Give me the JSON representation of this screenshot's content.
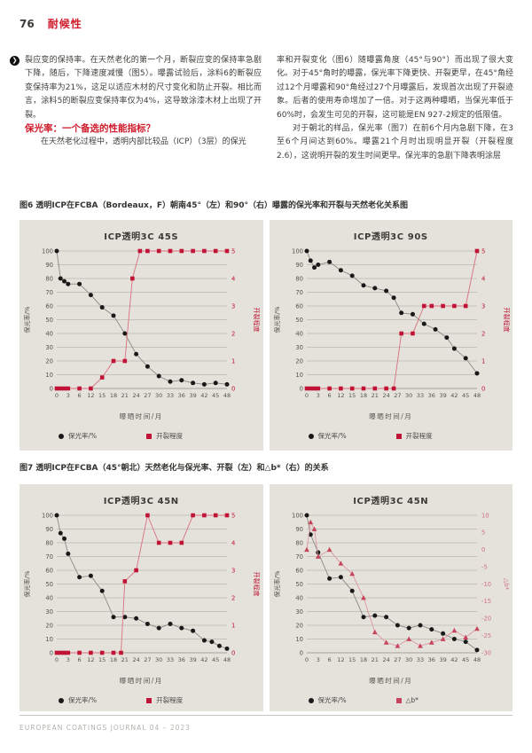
{
  "page": {
    "number": "76",
    "section": "耐候性"
  },
  "body": {
    "left_paragraph1": "裂应变的保持率。在天然老化的第一个月，断裂应变的保持率急剧下降，随后，下降速度减慢（图5）。曝露试验后，涂料6的断裂应变保持率为21%，这足以适应木材的尺寸变化和防止开裂。相比而言，涂料5的断裂应变保持率仅为4%，这导致涂漆木材上出现了开裂。",
    "heading": "保光率：一个备选的性能指标？",
    "left_paragraph2": "在天然老化过程中，透明内部比较品（ICP）（3层）的保光",
    "right_paragraph1": "率和开裂变化（图6）随曝露角度（45°与90°）而出现了很大变化。对于45°角时的曝露，保光率下降更快、开裂更早，在45°角经过12个月曝露和90°角经过27个月曝露后，发现首次出现了开裂迹象。后者的使用寿命增加了一倍。对于这两种曝晒，当保光率低于60%时，会发生可见的开裂，这可能是EN 927-2规定的低限值。",
    "right_paragraph2": "对于朝北的样品，保光率（图7）在前6个月内急剧下降，在3至6个月间达到60%。曝露21个月时出现明显开裂（开裂程度2.6），这说明开裂的发生时间更早。保光率的急剧下降表明涂层"
  },
  "figure6": {
    "caption": "图6 透明ICP在FCBA（Bordeaux，F）朝南45°（左）和90°（右）曝露的保光率和开裂与天然老化关系图"
  },
  "figure7": {
    "caption": "图7 透明ICP在FCBA（45°朝北）天然老化与保光率、开裂（左）和△b*（右）的关系"
  },
  "footer": {
    "text": "EUROPEAN COATINGS JOURNAL 04 – 2023"
  },
  "colors": {
    "accent": "#cf1b2b",
    "panel_bg": "#e4e2db",
    "grid": "#a5a29a",
    "black_marker": "#191919",
    "gray_line": "#8b8a84",
    "red_marker": "#c11335",
    "red_line": "#d9707e",
    "pink_marker": "#c6455c",
    "pink_line": "#dc96a1"
  },
  "chart_data": [
    {
      "type": "line",
      "title": "ICP透明3C 45S",
      "xlabel": "曝晒时间/月",
      "x_ticks": [
        0,
        3,
        6,
        12,
        15,
        18,
        21,
        24,
        27,
        30,
        33,
        36,
        39,
        42,
        45,
        48
      ],
      "y_left": {
        "label": "保光率/%",
        "min": 0,
        "max": 100,
        "step": 10,
        "color": "#55544e"
      },
      "y_right": {
        "label": "开裂程度",
        "min": 0,
        "max": 5,
        "step": 1,
        "color": "#c11335"
      },
      "series": [
        {
          "name": "保光率/%",
          "axis": "left",
          "marker": "circle",
          "marker_color": "#191919",
          "line_color": "#8b8a84",
          "points": [
            [
              0,
              100
            ],
            [
              1,
              80
            ],
            [
              2,
              78
            ],
            [
              3,
              76
            ],
            [
              6,
              76
            ],
            [
              12,
              68
            ],
            [
              15,
              59
            ],
            [
              18,
              53
            ],
            [
              21,
              40
            ],
            [
              24,
              25
            ],
            [
              27,
              16
            ],
            [
              30,
              9
            ],
            [
              33,
              5
            ],
            [
              36,
              6
            ],
            [
              39,
              4
            ],
            [
              42,
              3
            ],
            [
              45,
              4
            ],
            [
              48,
              3
            ]
          ]
        },
        {
          "name": "开裂程度",
          "axis": "right",
          "marker": "square",
          "marker_color": "#c11335",
          "line_color": "#d9707e",
          "points": [
            [
              0,
              0
            ],
            [
              1,
              0
            ],
            [
              2,
              0
            ],
            [
              3,
              0
            ],
            [
              6,
              0
            ],
            [
              12,
              0
            ],
            [
              15,
              0.4
            ],
            [
              18,
              1
            ],
            [
              21,
              1
            ],
            [
              23,
              4
            ],
            [
              25,
              5
            ],
            [
              27,
              5
            ],
            [
              30,
              5
            ],
            [
              33,
              5
            ],
            [
              36,
              5
            ],
            [
              39,
              5
            ],
            [
              42,
              5
            ],
            [
              45,
              5
            ],
            [
              48,
              5
            ]
          ]
        }
      ]
    },
    {
      "type": "line",
      "title": "ICP透明3C 90S",
      "xlabel": "曝晒时间/月",
      "x_ticks": [
        0,
        3,
        6,
        12,
        15,
        18,
        21,
        24,
        27,
        30,
        33,
        36,
        39,
        42,
        45,
        48
      ],
      "y_left": {
        "label": "保光率/%",
        "min": 0,
        "max": 100,
        "step": 10,
        "color": "#55544e"
      },
      "y_right": {
        "label": "开裂程度",
        "min": 0,
        "max": 5,
        "step": 1,
        "color": "#c11335"
      },
      "series": [
        {
          "name": "保光率/%",
          "axis": "left",
          "marker": "circle",
          "marker_color": "#191919",
          "line_color": "#8b8a84",
          "points": [
            [
              0,
              100
            ],
            [
              1,
              93
            ],
            [
              2,
              88
            ],
            [
              3,
              90
            ],
            [
              6,
              92
            ],
            [
              12,
              86
            ],
            [
              15,
              82
            ],
            [
              18,
              75
            ],
            [
              21,
              73
            ],
            [
              24,
              71
            ],
            [
              26,
              66
            ],
            [
              28,
              55
            ],
            [
              31,
              54
            ],
            [
              34,
              47
            ],
            [
              37,
              43
            ],
            [
              40,
              37
            ],
            [
              42,
              29
            ],
            [
              45,
              22
            ],
            [
              48,
              11
            ]
          ]
        },
        {
          "name": "开裂程度",
          "axis": "right",
          "marker": "square",
          "marker_color": "#c11335",
          "line_color": "#d9707e",
          "points": [
            [
              0,
              0
            ],
            [
              1,
              0
            ],
            [
              2,
              0
            ],
            [
              3,
              0
            ],
            [
              6,
              0
            ],
            [
              12,
              0
            ],
            [
              15,
              0
            ],
            [
              18,
              0
            ],
            [
              21,
              0
            ],
            [
              24,
              0
            ],
            [
              26,
              0
            ],
            [
              28,
              2
            ],
            [
              31,
              2
            ],
            [
              34,
              3
            ],
            [
              36,
              3
            ],
            [
              39,
              3
            ],
            [
              42,
              3
            ],
            [
              45,
              3
            ],
            [
              48,
              5
            ]
          ]
        }
      ]
    },
    {
      "type": "line",
      "title": "ICP透明3C 45N",
      "xlabel": "曝晒时间/月",
      "x_ticks": [
        0,
        3,
        6,
        12,
        15,
        18,
        21,
        24,
        27,
        30,
        33,
        36,
        39,
        42,
        45,
        48
      ],
      "y_left": {
        "label": "保光率/%",
        "min": 0,
        "max": 100,
        "step": 10,
        "color": "#55544e"
      },
      "y_right": {
        "label": "开裂程度",
        "min": 0,
        "max": 5,
        "step": 1,
        "color": "#c11335"
      },
      "series": [
        {
          "name": "保光率/%",
          "axis": "left",
          "marker": "circle",
          "marker_color": "#191919",
          "line_color": "#8b8a84",
          "points": [
            [
              0,
              100
            ],
            [
              1,
              87
            ],
            [
              2,
              83
            ],
            [
              3,
              72
            ],
            [
              6,
              55
            ],
            [
              12,
              56
            ],
            [
              15,
              45
            ],
            [
              18,
              26
            ],
            [
              21,
              26
            ],
            [
              24,
              25
            ],
            [
              27,
              21
            ],
            [
              30,
              18
            ],
            [
              33,
              21
            ],
            [
              36,
              18
            ],
            [
              39,
              16
            ],
            [
              42,
              9
            ],
            [
              44,
              8
            ],
            [
              46,
              5
            ],
            [
              48,
              3
            ]
          ]
        },
        {
          "name": "开裂程度",
          "axis": "right",
          "marker": "square",
          "marker_color": "#c11335",
          "line_color": "#d9707e",
          "points": [
            [
              0,
              0
            ],
            [
              1,
              0
            ],
            [
              2,
              0
            ],
            [
              3,
              0
            ],
            [
              6,
              0
            ],
            [
              12,
              0
            ],
            [
              15,
              0
            ],
            [
              18,
              0
            ],
            [
              20,
              0
            ],
            [
              21,
              2.6
            ],
            [
              24,
              3
            ],
            [
              27,
              5
            ],
            [
              30,
              4
            ],
            [
              33,
              4
            ],
            [
              36,
              4
            ],
            [
              39,
              5
            ],
            [
              42,
              5
            ],
            [
              45,
              5
            ],
            [
              48,
              5
            ]
          ]
        }
      ]
    },
    {
      "type": "line",
      "title": "ICP透明3C 45N",
      "xlabel": "曝晒时间/月",
      "x_ticks": [
        0,
        3,
        6,
        12,
        15,
        18,
        21,
        24,
        27,
        30,
        33,
        36,
        39,
        42,
        45,
        48
      ],
      "y_left": {
        "label": "保光率/%",
        "min": 0,
        "max": 100,
        "step": 10,
        "color": "#55544e"
      },
      "y_right": {
        "label": "△b*",
        "min": -30,
        "max": 10,
        "step": 5,
        "color": "#cd7380"
      },
      "series": [
        {
          "name": "保光率/%",
          "axis": "left",
          "marker": "circle",
          "marker_color": "#191919",
          "line_color": "#8b8a84",
          "points": [
            [
              0,
              100
            ],
            [
              1,
              86
            ],
            [
              3,
              73
            ],
            [
              6,
              54
            ],
            [
              12,
              55
            ],
            [
              15,
              45
            ],
            [
              18,
              26
            ],
            [
              21,
              27
            ],
            [
              24,
              26
            ],
            [
              27,
              20
            ],
            [
              30,
              18
            ],
            [
              33,
              20
            ],
            [
              36,
              17
            ],
            [
              39,
              14
            ],
            [
              42,
              10
            ],
            [
              45,
              8
            ],
            [
              48,
              2
            ]
          ]
        },
        {
          "name": "△b*",
          "axis": "right",
          "marker": "triangle",
          "legend_marker": "square",
          "marker_color": "#c6455c",
          "line_color": "#dc96a1",
          "points": [
            [
              0,
              0
            ],
            [
              1,
              8
            ],
            [
              2,
              6
            ],
            [
              3,
              -2
            ],
            [
              6,
              0
            ],
            [
              12,
              -4
            ],
            [
              15,
              -7
            ],
            [
              18,
              -14
            ],
            [
              21,
              -24
            ],
            [
              24,
              -27
            ],
            [
              27,
              -28
            ],
            [
              30,
              -26
            ],
            [
              33,
              -28
            ],
            [
              36,
              -27
            ],
            [
              39,
              -26
            ],
            [
              42,
              -23.5
            ],
            [
              45,
              -25.5
            ],
            [
              48,
              -23
            ]
          ]
        }
      ]
    }
  ]
}
